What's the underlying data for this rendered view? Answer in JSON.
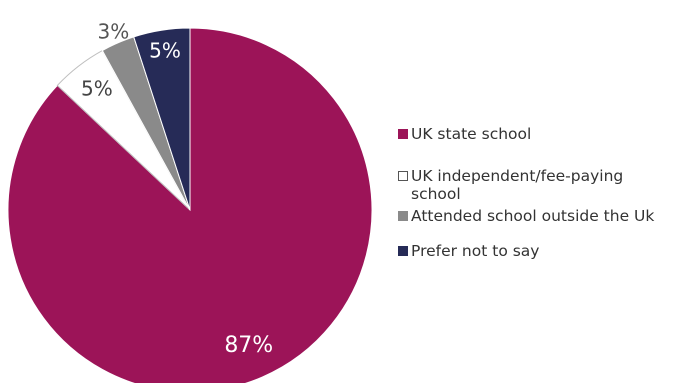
{
  "chart_data": {
    "type": "pie",
    "slices": [
      {
        "label": "UK state school",
        "value": 87,
        "display": "87%",
        "color": "#9c1458"
      },
      {
        "label": "UK independent/fee-paying school",
        "value": 5,
        "display": "5%",
        "color": "#ffffff"
      },
      {
        "label": "Attended school outside the Uk",
        "value": 3,
        "display": "3%",
        "color": "#8a8a8a"
      },
      {
        "label": "Prefer not to say",
        "value": 5,
        "display": "5%",
        "color": "#262b57"
      }
    ],
    "legend_position": "right"
  }
}
